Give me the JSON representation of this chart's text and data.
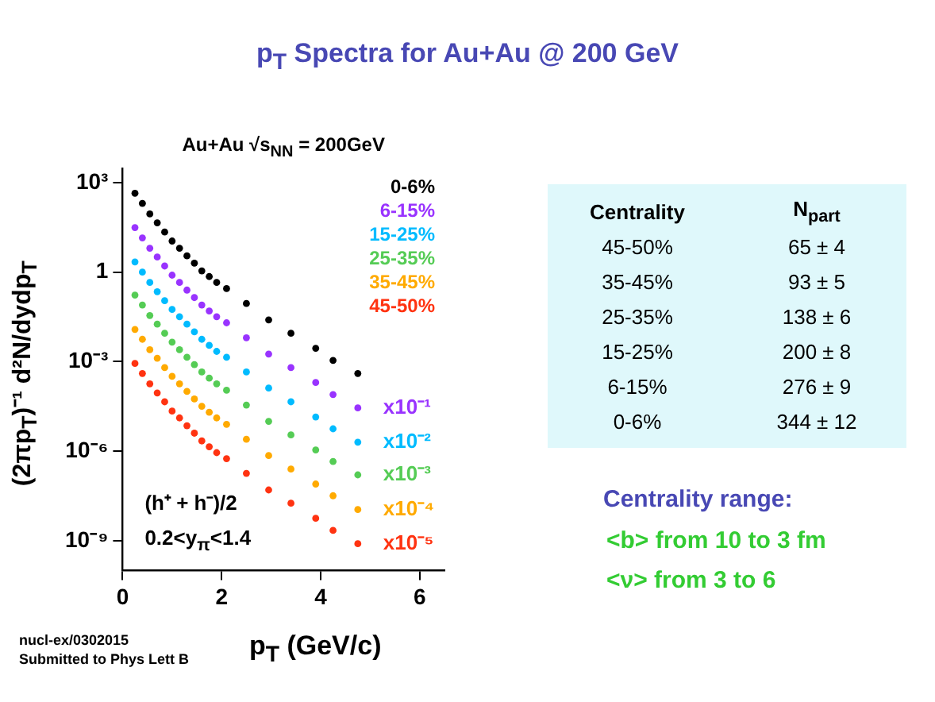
{
  "chart_data": [
    {
      "type": "scatter",
      "title": "p$_{T}$ Spectra for Au+Au @ 200 GeV",
      "subtitle": "Au+Au √s$_{NN}$ = 200GeV",
      "xlabel": "p$_{T}$ (GeV/c)",
      "ylabel": "(2πp$_{T}$)⁻¹ d²N/dydp$_{T}$",
      "log": "y",
      "marker": "circle",
      "legend": "top right",
      "grid": false,
      "xlim": [
        0,
        6.5
      ],
      "xticks": [
        0,
        2,
        4,
        6
      ],
      "ylim": [
        1e-10,
        3000
      ],
      "yticks": [
        {
          "value": 1e-09,
          "label": "10⁻⁹"
        },
        {
          "value": 1e-06,
          "label": "10⁻⁶"
        },
        {
          "value": 0.001,
          "label": "10⁻³"
        },
        1,
        {
          "value": 1000,
          "label": "10³"
        }
      ],
      "x": [
        0.25,
        0.4,
        0.55,
        0.7,
        0.85,
        1.0,
        1.15,
        1.3,
        1.45,
        1.6,
        1.75,
        1.9,
        2.1,
        2.5,
        2.95,
        3.4,
        3.9,
        4.25,
        4.75
      ],
      "series": [
        {
          "name": "0-6%",
          "color": "#000000",
          "values": [
            440,
            200,
            89,
            45,
            22,
            11,
            6.3,
            3.5,
            2.0,
            1.1,
            0.71,
            0.45,
            0.28,
            0.089,
            0.025,
            0.0089,
            0.0028,
            0.0011,
            0.0004
          ]
        },
        {
          "name": "6-15%",
          "color": "#9933ff",
          "values": [
            31,
            14,
            6.3,
            3.2,
            1.6,
            0.79,
            0.45,
            0.25,
            0.14,
            0.079,
            0.05,
            0.032,
            0.02,
            0.0063,
            0.0018,
            0.00063,
            0.0002,
            7.9e-05,
            2.8e-05
          ]
        },
        {
          "name": "15-25%",
          "color": "#00bbff",
          "values": [
            2.2,
            1.0,
            0.45,
            0.22,
            0.11,
            0.056,
            0.032,
            0.018,
            0.01,
            0.0056,
            0.0035,
            0.0022,
            0.0014,
            0.00045,
            0.00013,
            4.5e-05,
            1.4e-05,
            5.6e-06,
            2e-06
          ]
        },
        {
          "name": "25-35%",
          "color": "#55cc55",
          "values": [
            0.17,
            0.079,
            0.035,
            0.018,
            0.0089,
            0.0045,
            0.0025,
            0.0014,
            0.00079,
            0.00045,
            0.00028,
            0.00018,
            0.00011,
            3.5e-05,
            1e-05,
            3.5e-06,
            1.1e-06,
            4.5e-07,
            1.6e-07
          ]
        },
        {
          "name": "35-45%",
          "color": "#ffaa00",
          "values": [
            0.012,
            0.0056,
            0.0025,
            0.0013,
            0.00063,
            0.00032,
            0.00018,
            0.0001,
            5.6e-05,
            3.2e-05,
            2e-05,
            1.3e-05,
            7.9e-06,
            2.5e-06,
            7.1e-07,
            2.5e-07,
            7.9e-08,
            3.2e-08,
            1.1e-08
          ]
        },
        {
          "name": "45-50%",
          "color": "#ff3311",
          "values": [
            0.00087,
            0.0004,
            0.00018,
            8.9e-05,
            4.5e-05,
            2.2e-05,
            1.3e-05,
            7.1e-06,
            4e-06,
            2.2e-06,
            1.4e-06,
            8.9e-07,
            5.6e-07,
            1.8e-07,
            5e-08,
            1.8e-08,
            5.6e-09,
            2.2e-09,
            7.9e-10
          ]
        }
      ],
      "annotations": [
        "(h⁺ + h⁻)/2",
        "0.2<y$_{π}$<1.4",
        "nucl-ex/0302015",
        "Submitted to Phys Lett B",
        "x10⁻¹",
        "x10⁻²",
        "x10⁻³",
        "x10⁻⁴",
        "x10⁻⁵"
      ]
    },
    {
      "type": "other",
      "annotations": [
        "Centrality",
        "N$_{part}$",
        "45-50%",
        "65 ± 4",
        "35-45%",
        "93 ± 5",
        "25-35%",
        "138 ± 6",
        "15-25%",
        "200 ± 8",
        "6-15%",
        "276 ± 9",
        "0-6%",
        "344 ± 12"
      ]
    },
    {
      "type": "other",
      "title": "Centrality range:",
      "annotations": [
        "<b> from 10 to 3 fm",
        "<ν> from 3 to 6"
      ]
    }
  ]
}
